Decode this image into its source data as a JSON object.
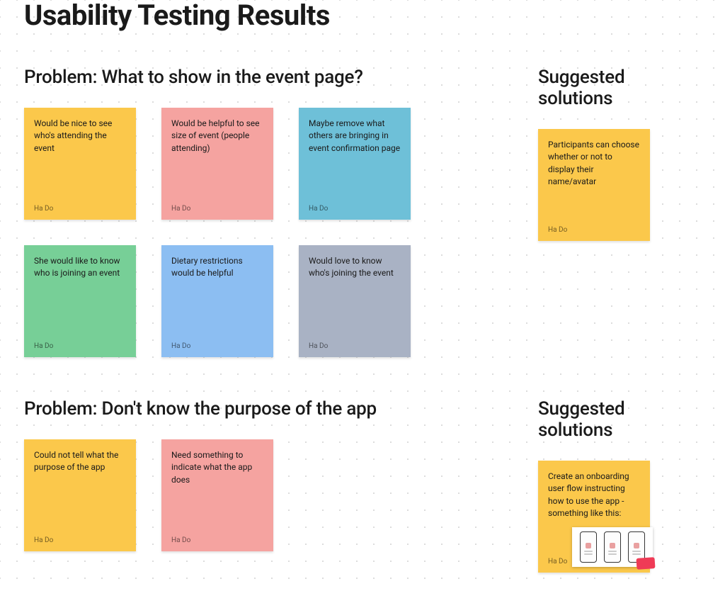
{
  "title": "Usability Testing Results",
  "colors": {
    "yellow": "#fbc84b",
    "pink": "#f5a3a0",
    "cyan": "#6ec0d8",
    "green": "#77cf97",
    "blue": "#8cbef2",
    "gray": "#a9b2c4",
    "background": "#ffffff",
    "text": "#1a1a1a",
    "dot": "#d0d0d0"
  },
  "sections": [
    {
      "problem_heading": "Problem: What to show in the event page?",
      "solution_heading": "Suggested solutions",
      "problem_notes": [
        {
          "text": "Would be nice to see who's attending the event",
          "author": "Ha Do",
          "color": "yellow"
        },
        {
          "text": "Would be helpful to see size of event (people attending)",
          "author": "Ha Do",
          "color": "pink"
        },
        {
          "text": "Maybe remove what others are bringing in event confirmation page",
          "author": "Ha Do",
          "color": "cyan"
        },
        {
          "text": "She would like to know who is joining an event",
          "author": "Ha Do",
          "color": "green"
        },
        {
          "text": "Dietary restrictions would be helpful",
          "author": "Ha Do",
          "color": "blue"
        },
        {
          "text": "Would love to know who's joining the event",
          "author": "Ha Do",
          "color": "gray"
        }
      ],
      "solution_notes": [
        {
          "text": "Participants can choose whether or not to display their name/avatar",
          "author": "Ha Do",
          "color": "yellow"
        }
      ]
    },
    {
      "problem_heading": "Problem: Don't know the purpose of the app",
      "solution_heading": "Suggested solutions",
      "problem_notes": [
        {
          "text": "Could not tell what the purpose of the app",
          "author": "Ha Do",
          "color": "yellow"
        },
        {
          "text": "Need something to indicate what the app does",
          "author": "Ha Do",
          "color": "pink"
        }
      ],
      "solution_notes": [
        {
          "text": "Create an onboarding user flow instructing how to use the app - something like this:",
          "author": "Ha Do",
          "color": "yellow",
          "has_thumbnail": true
        }
      ]
    }
  ]
}
